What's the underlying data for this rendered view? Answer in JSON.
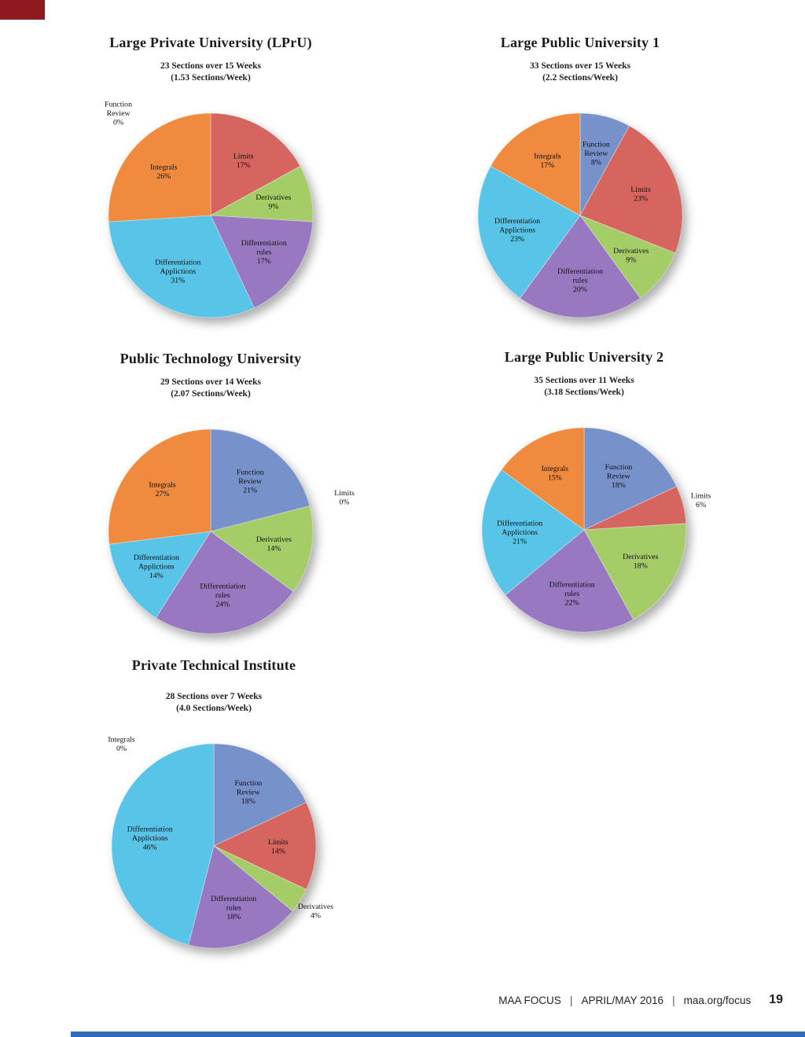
{
  "page": {
    "background": "#ffffff",
    "corner_bar_color": "#8e1a1f",
    "bottom_bar_color": "#2e6db4"
  },
  "footer": {
    "brand": "MAA FOCUS",
    "separator1": "|",
    "issue": "APRIL/MAY 2016",
    "separator2": "|",
    "url": "maa.org/focus",
    "page_number": "19"
  },
  "slice_colors": {
    "Function Review": "#7792cb",
    "Limits": "#d5655e",
    "Derivatives": "#a4cd68",
    "Differentiation rules": "#9879c1",
    "Differentiation Applictions": "#58c4e7",
    "Integrals": "#ef8a3e"
  },
  "chart_data": [
    {
      "type": "pie",
      "title": "Large Private University (LPrU)",
      "subtitle": [
        "23 Sections over 15 Weeks",
        "(1.53 Sections/Week)"
      ],
      "unit": "%",
      "legend_position": "none",
      "categories": [
        "Function Review",
        "Limits",
        "Derivatives",
        "Differentiation rules",
        "Differentiation Applictions",
        "Integrals"
      ],
      "values": [
        0,
        17,
        9,
        17,
        31,
        26
      ]
    },
    {
      "type": "pie",
      "title": "Large Public University 1",
      "subtitle": [
        "33 Sections over 15 Weeks",
        "(2.2 Sections/Week)"
      ],
      "unit": "%",
      "legend_position": "none",
      "categories": [
        "Function Review",
        "Limits",
        "Derivatives",
        "Differentiation rules",
        "Differentiation Applictions",
        "Integrals"
      ],
      "values": [
        8,
        23,
        9,
        20,
        23,
        17
      ]
    },
    {
      "type": "pie",
      "title": "Public Technology University",
      "subtitle": [
        "29 Sections over 14 Weeks",
        "(2.07 Sections/Week)"
      ],
      "unit": "%",
      "legend_position": "none",
      "categories": [
        "Function Review",
        "Limits",
        "Derivatives",
        "Differentiation rules",
        "Differentiation Applictions",
        "Integrals"
      ],
      "values": [
        21,
        0,
        14,
        24,
        14,
        27
      ]
    },
    {
      "type": "pie",
      "title": "Large Public University 2",
      "subtitle": [
        "35 Sections over 11 Weeks",
        "(3.18 Sections/Week)"
      ],
      "unit": "%",
      "legend_position": "none",
      "categories": [
        "Function Review",
        "Limits",
        "Derivatives",
        "Differentiation rules",
        "Differentiation Applictions",
        "Integrals"
      ],
      "values": [
        18,
        6,
        18,
        22,
        21,
        15
      ]
    },
    {
      "type": "pie",
      "title": "Private Technical Institute",
      "subtitle": [
        "28 Sections over 7 Weeks",
        "(4.0 Sections/Week)"
      ],
      "unit": "%",
      "legend_position": "none",
      "categories": [
        "Function Review",
        "Limits",
        "Derivatives",
        "Differentiation rules",
        "Differentiation Applictions",
        "Integrals"
      ],
      "values": [
        18,
        14,
        4,
        18,
        46,
        0
      ]
    }
  ]
}
